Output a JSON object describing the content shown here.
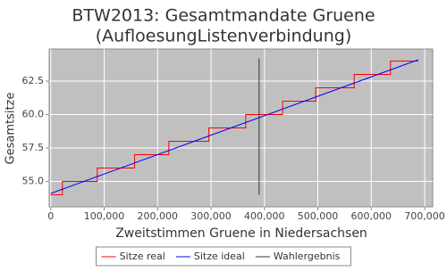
{
  "chart_data": {
    "type": "line",
    "title": "BTW2013: Gesamtmandate Gruene",
    "subtitle": "(AufloesungListenverbindung)",
    "x_label": "Zweitstimmen Gruene in Niedersachsen",
    "y_label": "Gesamtsitze",
    "xlim": [
      -3000,
      715000
    ],
    "ylim": [
      53.1,
      64.9
    ],
    "xticks": [
      0,
      {
        "value": 100000,
        "label": "100,000"
      },
      {
        "value": 200000,
        "label": "200,000"
      },
      {
        "value": 300000,
        "label": "300,000"
      },
      {
        "value": 400000,
        "label": "400,000"
      },
      {
        "value": 500000,
        "label": "500,000"
      },
      {
        "value": 600000,
        "label": "600,000"
      },
      {
        "value": 700000,
        "label": "700,000"
      }
    ],
    "yticks": [
      {
        "value": 55,
        "label": "55.0"
      },
      57.5,
      {
        "value": 60,
        "label": "60.0"
      },
      62.5
    ],
    "grid": true,
    "series": [
      {
        "name": "Sitze real",
        "color": "#ff0000",
        "x": [
          0,
          21800,
          21800,
          87000,
          87000,
          157000,
          157000,
          221000,
          221000,
          296000,
          296000,
          365000,
          365000,
          434000,
          434000,
          496000,
          496000,
          568000,
          568000,
          636000,
          636000,
          688000
        ],
        "values": [
          54,
          54,
          55,
          55,
          56,
          56,
          57,
          57,
          58,
          58,
          59,
          59,
          60,
          60,
          61,
          61,
          62,
          62,
          63,
          63,
          64,
          64
        ]
      },
      {
        "name": "Sitze ideal",
        "color": "#0000ff",
        "x": [
          0,
          688000
        ],
        "values": [
          54.1,
          64.1
        ]
      },
      {
        "name": "Wahlergebnis",
        "color": "#333333",
        "x": [
          390000,
          390000
        ],
        "values": [
          54.0,
          64.2
        ]
      }
    ]
  }
}
